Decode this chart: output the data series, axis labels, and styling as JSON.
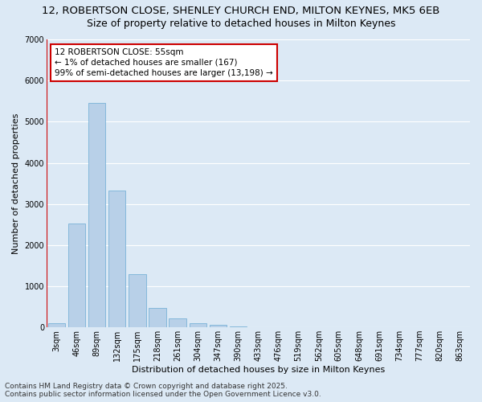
{
  "title_line1": "12, ROBERTSON CLOSE, SHENLEY CHURCH END, MILTON KEYNES, MK5 6EB",
  "title_line2": "Size of property relative to detached houses in Milton Keynes",
  "xlabel": "Distribution of detached houses by size in Milton Keynes",
  "ylabel": "Number of detached properties",
  "categories": [
    "3sqm",
    "46sqm",
    "89sqm",
    "132sqm",
    "175sqm",
    "218sqm",
    "261sqm",
    "304sqm",
    "347sqm",
    "390sqm",
    "433sqm",
    "476sqm",
    "519sqm",
    "562sqm",
    "605sqm",
    "648sqm",
    "691sqm",
    "734sqm",
    "777sqm",
    "820sqm",
    "863sqm"
  ],
  "values": [
    100,
    2520,
    5450,
    3330,
    1290,
    470,
    220,
    100,
    55,
    30,
    10,
    5,
    0,
    0,
    0,
    0,
    0,
    0,
    0,
    0,
    0
  ],
  "bar_color": "#b8d0e8",
  "bar_edge_color": "#6aaad4",
  "vline_x": 0.5,
  "vline_color": "#cc0000",
  "annotation_text": "12 ROBERTSON CLOSE: 55sqm\n← 1% of detached houses are smaller (167)\n99% of semi-detached houses are larger (13,198) →",
  "annotation_box_color": "#ffffff",
  "annotation_box_edge": "#cc0000",
  "ylim": [
    0,
    7000
  ],
  "yticks": [
    0,
    1000,
    2000,
    3000,
    4000,
    5000,
    6000,
    7000
  ],
  "background_color": "#dce9f5",
  "plot_background": "#dce9f5",
  "grid_color": "#ffffff",
  "footer_line1": "Contains HM Land Registry data © Crown copyright and database right 2025.",
  "footer_line2": "Contains public sector information licensed under the Open Government Licence v3.0.",
  "title_fontsize": 9.5,
  "subtitle_fontsize": 9,
  "axis_label_fontsize": 8,
  "tick_fontsize": 7,
  "annotation_fontsize": 7.5,
  "footer_fontsize": 6.5
}
